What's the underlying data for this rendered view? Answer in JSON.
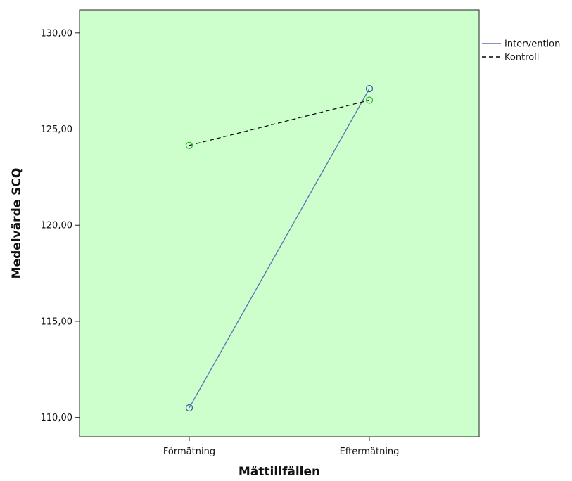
{
  "chart_data": {
    "type": "line",
    "xlabel": "Mättillfällen",
    "ylabel": "Medelvärde SCQ",
    "categories": [
      "Förmätning",
      "Eftermätning"
    ],
    "ylim": [
      109,
      131.2
    ],
    "yticks": [
      110,
      115,
      120,
      125,
      130
    ],
    "ytick_labels": [
      "110,00",
      "115,00",
      "120,00",
      "125,00",
      "130,00"
    ],
    "grid": false,
    "legend_position": "top-right, outside plot",
    "plot_background": "#ccffcc",
    "series": [
      {
        "name": "Intervention",
        "values": [
          110.5,
          127.1
        ],
        "line_color": "#5a6fb5",
        "marker_color": "#3d56a8",
        "dash": "solid"
      },
      {
        "name": "Kontroll",
        "values": [
          124.15,
          126.5
        ],
        "line_color": "#000000",
        "marker_color": "#33b833",
        "dash": "dashed"
      }
    ]
  }
}
